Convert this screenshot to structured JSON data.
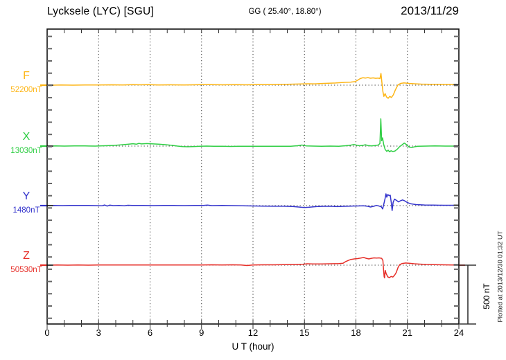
{
  "header": {
    "title": "Lycksele (LYC)  [SGU]",
    "coordinates": "GG ( 25.40°,  18.80°)",
    "date": "2013/11/29"
  },
  "axis": {
    "xlabel": "U T (hour)",
    "x_ticks": [
      0,
      3,
      6,
      9,
      12,
      15,
      18,
      21,
      24
    ]
  },
  "annotations": {
    "scale_bar_label": "500 nT",
    "plotted_at": "Plotted at 2013/12/30 01:32 UT"
  },
  "colors": {
    "F": "#FDB515",
    "X": "#2FCE44",
    "Y": "#3333CC",
    "Z": "#E62E28",
    "frame": "#111111",
    "grid": "#333333",
    "axis_tick": "#666666",
    "edge_marker": "#3a3a3a"
  },
  "chart_data": {
    "type": "line",
    "title": "Lycksele (LYC)  [SGU]",
    "station": "Lycksele",
    "station_code": "LYC",
    "institute": "SGU",
    "date": "2013/11/29",
    "xlabel": "U T (hour)",
    "x_range": [
      0,
      24
    ],
    "x_ticks": [
      0,
      3,
      6,
      9,
      12,
      15,
      18,
      21,
      24
    ],
    "grid": "dotted vertical lines every 3 hours; dotted horizontal baseline per channel",
    "legend_position": "left labels per trace",
    "scale_bar_nT": 500,
    "series": [
      {
        "id": "F",
        "label": "F",
        "baseline_label": "52200nT",
        "baseline_nT": 52200,
        "color": "#FDB515",
        "points_hour_offset_nT": [
          [
            0,
            0
          ],
          [
            0.35,
            0
          ],
          [
            0.8,
            2
          ],
          [
            1.5,
            0
          ],
          [
            2.2,
            2
          ],
          [
            3,
            1
          ],
          [
            3.8,
            3
          ],
          [
            4.4,
            2
          ],
          [
            5,
            5
          ],
          [
            5.4,
            3
          ],
          [
            5.9,
            5
          ],
          [
            6.5,
            2
          ],
          [
            7.2,
            3
          ],
          [
            8,
            2
          ],
          [
            9,
            4
          ],
          [
            9.6,
            5
          ],
          [
            10.2,
            3
          ],
          [
            11,
            4
          ],
          [
            11.6,
            3
          ],
          [
            12.2,
            4
          ],
          [
            13,
            5
          ],
          [
            13.6,
            6
          ],
          [
            14.2,
            8
          ],
          [
            14.8,
            10
          ],
          [
            15.2,
            12
          ],
          [
            15.6,
            11
          ],
          [
            16,
            14
          ],
          [
            16.4,
            16
          ],
          [
            16.8,
            18
          ],
          [
            17.1,
            21
          ],
          [
            17.4,
            24
          ],
          [
            17.7,
            26
          ],
          [
            17.95,
            30
          ],
          [
            18.1,
            42
          ],
          [
            18.25,
            56
          ],
          [
            18.4,
            63
          ],
          [
            18.55,
            60
          ],
          [
            18.7,
            64
          ],
          [
            18.85,
            59
          ],
          [
            19,
            62
          ],
          [
            19.15,
            58
          ],
          [
            19.3,
            60
          ],
          [
            19.4,
            56
          ],
          [
            19.46,
            100
          ],
          [
            19.52,
            15
          ],
          [
            19.57,
            -55
          ],
          [
            19.63,
            -95
          ],
          [
            19.7,
            -72
          ],
          [
            19.78,
            -100
          ],
          [
            19.88,
            -112
          ],
          [
            19.97,
            -95
          ],
          [
            20.07,
            -105
          ],
          [
            20.18,
            -82
          ],
          [
            20.3,
            -40
          ],
          [
            20.45,
            2
          ],
          [
            20.6,
            15
          ],
          [
            20.8,
            19
          ],
          [
            21.1,
            15
          ],
          [
            21.4,
            12
          ],
          [
            21.8,
            9
          ],
          [
            22.3,
            7
          ],
          [
            22.8,
            7
          ],
          [
            23.4,
            6
          ],
          [
            24,
            6
          ]
        ]
      },
      {
        "id": "X",
        "label": "X",
        "baseline_label": "13030nT",
        "baseline_nT": 13030,
        "color": "#2FCE44",
        "points_hour_offset_nT": [
          [
            0,
            0
          ],
          [
            0.5,
            1
          ],
          [
            1,
            0
          ],
          [
            1.6,
            2
          ],
          [
            2.2,
            1
          ],
          [
            2.8,
            0
          ],
          [
            3.4,
            3
          ],
          [
            3.9,
            6
          ],
          [
            4.3,
            10
          ],
          [
            4.7,
            15
          ],
          [
            5,
            20
          ],
          [
            5.2,
            16
          ],
          [
            5.35,
            23
          ],
          [
            5.5,
            18
          ],
          [
            5.8,
            21
          ],
          [
            6.1,
            19
          ],
          [
            6.5,
            16
          ],
          [
            6.9,
            12
          ],
          [
            7.3,
            6
          ],
          [
            7.6,
            0
          ],
          [
            7.9,
            -4
          ],
          [
            8.2,
            -6
          ],
          [
            8.5,
            -4
          ],
          [
            8.9,
            -2
          ],
          [
            9.3,
            0
          ],
          [
            9.7,
            -2
          ],
          [
            10.2,
            -1
          ],
          [
            10.7,
            -3
          ],
          [
            11.2,
            -1
          ],
          [
            11.8,
            -2
          ],
          [
            12.4,
            -1
          ],
          [
            13,
            -2
          ],
          [
            13.6,
            -1
          ],
          [
            14.2,
            -2
          ],
          [
            14.6,
            3
          ],
          [
            14.85,
            9
          ],
          [
            15.1,
            2
          ],
          [
            15.5,
            0
          ],
          [
            16,
            -1
          ],
          [
            16.5,
            0
          ],
          [
            17,
            -1
          ],
          [
            17.4,
            3
          ],
          [
            17.7,
            8
          ],
          [
            17.9,
            13
          ],
          [
            18.05,
            7
          ],
          [
            18.2,
            3
          ],
          [
            18.4,
            6
          ],
          [
            18.55,
            11
          ],
          [
            18.7,
            5
          ],
          [
            18.9,
            2
          ],
          [
            19.1,
            5
          ],
          [
            19.3,
            9
          ],
          [
            19.4,
            22
          ],
          [
            19.45,
            232
          ],
          [
            19.5,
            45
          ],
          [
            19.55,
            70
          ],
          [
            19.62,
            12
          ],
          [
            19.7,
            -28
          ],
          [
            19.8,
            -45
          ],
          [
            19.88,
            -35
          ],
          [
            19.96,
            -48
          ],
          [
            20.05,
            -40
          ],
          [
            20.15,
            -46
          ],
          [
            20.28,
            -42
          ],
          [
            20.42,
            -25
          ],
          [
            20.55,
            -5
          ],
          [
            20.7,
            12
          ],
          [
            20.82,
            26
          ],
          [
            20.95,
            12
          ],
          [
            21.1,
            -8
          ],
          [
            21.25,
            -13
          ],
          [
            21.42,
            -6
          ],
          [
            21.6,
            -2
          ],
          [
            22.1,
            0
          ],
          [
            22.6,
            1
          ],
          [
            23.2,
            0
          ],
          [
            24,
            0
          ]
        ]
      },
      {
        "id": "Y",
        "label": "Y",
        "baseline_label": "1480nT",
        "baseline_nT": 1480,
        "color": "#3333CC",
        "points_hour_offset_nT": [
          [
            0,
            0
          ],
          [
            0.4,
            2
          ],
          [
            0.9,
            0
          ],
          [
            1.3,
            2
          ],
          [
            1.8,
            1
          ],
          [
            2.3,
            2
          ],
          [
            2.8,
            0
          ],
          [
            3.2,
            -2
          ],
          [
            3.35,
            5
          ],
          [
            3.5,
            -4
          ],
          [
            3.65,
            4
          ],
          [
            3.85,
            0
          ],
          [
            4.2,
            2
          ],
          [
            4.5,
            -2
          ],
          [
            4.7,
            3
          ],
          [
            5,
            1
          ],
          [
            5.6,
            2
          ],
          [
            6.2,
            0
          ],
          [
            6.8,
            2
          ],
          [
            7.4,
            1
          ],
          [
            8,
            0
          ],
          [
            8.6,
            2
          ],
          [
            9.1,
            1
          ],
          [
            9.35,
            4
          ],
          [
            9.6,
            0
          ],
          [
            10.2,
            1
          ],
          [
            10.8,
            0
          ],
          [
            11.4,
            -1
          ],
          [
            12,
            -3
          ],
          [
            12.6,
            -4
          ],
          [
            13.2,
            -5
          ],
          [
            13.8,
            -5
          ],
          [
            14.3,
            -7
          ],
          [
            14.65,
            -12
          ],
          [
            15,
            -16
          ],
          [
            15.3,
            -13
          ],
          [
            15.7,
            -8
          ],
          [
            16.1,
            -6
          ],
          [
            16.5,
            -5
          ],
          [
            16.9,
            -8
          ],
          [
            17.3,
            -6
          ],
          [
            17.7,
            -4
          ],
          [
            18.1,
            -3
          ],
          [
            18.45,
            -2
          ],
          [
            18.7,
            -6
          ],
          [
            18.85,
            -12
          ],
          [
            19.05,
            -5
          ],
          [
            19.2,
            2
          ],
          [
            19.35,
            -4
          ],
          [
            19.48,
            -10
          ],
          [
            19.56,
            -28
          ],
          [
            19.63,
            15
          ],
          [
            19.7,
            62
          ],
          [
            19.75,
            100
          ],
          [
            19.8,
            72
          ],
          [
            19.86,
            95
          ],
          [
            19.93,
            85
          ],
          [
            20,
            88
          ],
          [
            20.06,
            25
          ],
          [
            20.11,
            -42
          ],
          [
            20.17,
            28
          ],
          [
            20.25,
            55
          ],
          [
            20.35,
            46
          ],
          [
            20.48,
            32
          ],
          [
            20.6,
            42
          ],
          [
            20.72,
            48
          ],
          [
            20.85,
            40
          ],
          [
            21,
            26
          ],
          [
            21.2,
            15
          ],
          [
            21.5,
            9
          ],
          [
            22,
            5
          ],
          [
            22.5,
            4
          ],
          [
            23.1,
            3
          ],
          [
            23.6,
            3
          ],
          [
            24,
            3
          ]
        ]
      },
      {
        "id": "Z",
        "label": "Z",
        "baseline_label": "50530nT",
        "baseline_nT": 50530,
        "color": "#E62E28",
        "points_hour_offset_nT": [
          [
            0,
            0
          ],
          [
            0.6,
            1
          ],
          [
            1.2,
            0
          ],
          [
            1.8,
            1
          ],
          [
            2.4,
            0
          ],
          [
            3,
            1
          ],
          [
            3.6,
            1
          ],
          [
            4.2,
            2
          ],
          [
            4.8,
            1
          ],
          [
            5.4,
            2
          ],
          [
            6,
            1
          ],
          [
            6.6,
            2
          ],
          [
            7.2,
            1
          ],
          [
            7.8,
            2
          ],
          [
            8.4,
            1
          ],
          [
            9,
            2
          ],
          [
            9.6,
            3
          ],
          [
            10.2,
            2
          ],
          [
            10.8,
            3
          ],
          [
            11.3,
            1
          ],
          [
            11.65,
            -3
          ],
          [
            12,
            2
          ],
          [
            12.6,
            3
          ],
          [
            13.2,
            3
          ],
          [
            13.8,
            4
          ],
          [
            14.4,
            5
          ],
          [
            14.9,
            7
          ],
          [
            15.15,
            12
          ],
          [
            15.5,
            10
          ],
          [
            16,
            10
          ],
          [
            16.5,
            12
          ],
          [
            17,
            13
          ],
          [
            17.25,
            16
          ],
          [
            17.4,
            30
          ],
          [
            17.55,
            40
          ],
          [
            17.7,
            48
          ],
          [
            17.9,
            53
          ],
          [
            18.1,
            56
          ],
          [
            18.3,
            61
          ],
          [
            18.45,
            65
          ],
          [
            18.6,
            58
          ],
          [
            18.75,
            53
          ],
          [
            18.9,
            58
          ],
          [
            19.05,
            62
          ],
          [
            19.2,
            60
          ],
          [
            19.35,
            62
          ],
          [
            19.5,
            58
          ],
          [
            19.57,
            40
          ],
          [
            19.61,
            -35
          ],
          [
            19.645,
            -98
          ],
          [
            19.67,
            -108
          ],
          [
            19.71,
            -45
          ],
          [
            19.76,
            -72
          ],
          [
            19.86,
            -100
          ],
          [
            19.95,
            -106
          ],
          [
            20.05,
            -96
          ],
          [
            20.15,
            -101
          ],
          [
            20.25,
            -86
          ],
          [
            20.35,
            -62
          ],
          [
            20.45,
            -22
          ],
          [
            20.55,
            4
          ],
          [
            20.7,
            14
          ],
          [
            20.9,
            18
          ],
          [
            21.1,
            16
          ],
          [
            21.4,
            12
          ],
          [
            21.7,
            9
          ],
          [
            22.1,
            6
          ],
          [
            22.6,
            4
          ],
          [
            23.1,
            3
          ],
          [
            23.6,
            2
          ],
          [
            24,
            2
          ]
        ]
      }
    ]
  }
}
